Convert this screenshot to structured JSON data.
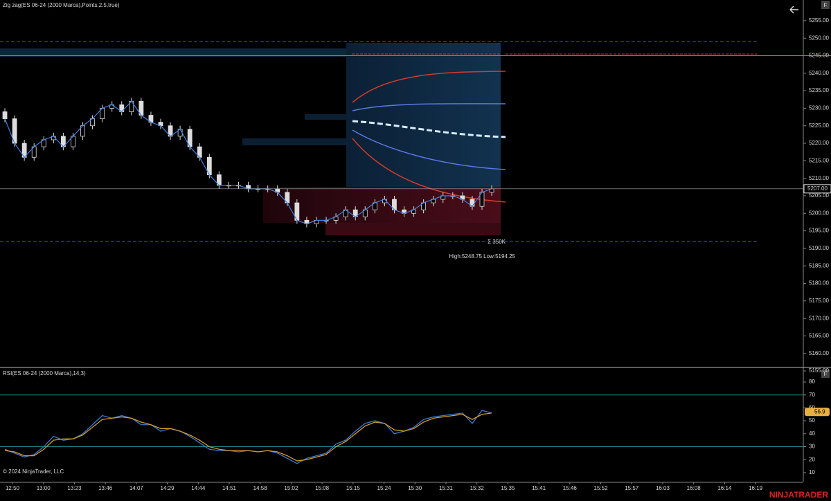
{
  "chart_data": [
    {
      "type": "candlestick",
      "title": "Zig zag(ES 06-24 (2000 Marca),Points,2.5,true)",
      "xlim": [
        -0.5,
        82
      ],
      "ylim": [
        5156.2,
        5260.9
      ],
      "yticks": [
        {
          "value": 5155,
          "label": "5155.00"
        },
        {
          "value": 5160,
          "label": "5160.00"
        },
        {
          "value": 5165,
          "label": "5165.00"
        },
        {
          "value": 5170,
          "label": "5170.00"
        },
        {
          "value": 5175,
          "label": "5175.00"
        },
        {
          "value": 5180,
          "label": "5180.00"
        },
        {
          "value": 5185,
          "label": "5185.00"
        },
        {
          "value": 5190,
          "label": "5190.00"
        },
        {
          "value": 5195,
          "label": "5195.00"
        },
        {
          "value": 5200,
          "label": "5200.00"
        },
        {
          "value": 5205,
          "label": "5205.00"
        },
        {
          "value": 5210,
          "label": "5210.00"
        },
        {
          "value": 5215,
          "label": "5215.00"
        },
        {
          "value": 5220,
          "label": "5220.00"
        },
        {
          "value": 5225,
          "label": "5225.00"
        },
        {
          "value": 5230,
          "label": "5230.00"
        },
        {
          "value": 5235,
          "label": "5235.00"
        },
        {
          "value": 5240,
          "label": "5240.00"
        },
        {
          "value": 5245,
          "label": "5245.00"
        },
        {
          "value": 5250,
          "label": "5250.00"
        },
        {
          "value": 5255,
          "label": "5255.00"
        }
      ],
      "open": [
        5229,
        5227,
        5220,
        5216,
        5219,
        5221,
        5222,
        5219,
        5222,
        5225,
        5227,
        5230,
        5231,
        5229,
        5232,
        5228,
        5226,
        5225,
        5222,
        5224,
        5219,
        5216,
        5211,
        5208,
        5208,
        5208,
        5207,
        5207,
        5207,
        5206,
        5203,
        5198,
        5197,
        5198,
        5198,
        5199,
        5201,
        5199,
        5201,
        5203,
        5204,
        5201,
        5200,
        5201,
        5203,
        5204,
        5205,
        5205,
        5204,
        5202,
        5206
      ],
      "high": [
        5230,
        5228,
        5221,
        5220,
        5222,
        5223,
        5223,
        5223,
        5226,
        5228,
        5231,
        5232,
        5232,
        5233,
        5233,
        5229,
        5227,
        5226,
        5225,
        5225,
        5220,
        5217,
        5212,
        5209,
        5209,
        5209,
        5208,
        5208,
        5208,
        5207,
        5204,
        5199,
        5199,
        5199,
        5200,
        5202,
        5202,
        5202,
        5204,
        5205,
        5205,
        5202,
        5202,
        5204,
        5205,
        5206,
        5206,
        5206,
        5205,
        5207,
        5208
      ],
      "low": [
        5226,
        5219,
        5215,
        5215,
        5218,
        5220,
        5218,
        5218,
        5221,
        5224,
        5226,
        5229,
        5228,
        5228,
        5227,
        5225,
        5224,
        5221,
        5221,
        5218,
        5215,
        5210,
        5207,
        5207,
        5207,
        5206,
        5206,
        5206,
        5205,
        5202,
        5197,
        5196,
        5196,
        5197,
        5197,
        5198,
        5198,
        5198,
        5200,
        5202,
        5200,
        5199,
        5199,
        5200,
        5202,
        5203,
        5204,
        5203,
        5201,
        5201,
        5205
      ],
      "close": [
        5227,
        5220,
        5216,
        5219,
        5221,
        5222,
        5219,
        5222,
        5225,
        5227,
        5230,
        5231,
        5229,
        5232,
        5228,
        5226,
        5225,
        5222,
        5224,
        5219,
        5216,
        5211,
        5208,
        5208,
        5208,
        5207,
        5207,
        5207,
        5206,
        5203,
        5198,
        5197,
        5198,
        5198,
        5199,
        5201,
        5199,
        5201,
        5203,
        5204,
        5201,
        5200,
        5201,
        5203,
        5204,
        5205,
        5205,
        5204,
        5202,
        5206,
        5207
      ],
      "levels": [
        5249,
        5245,
        5192
      ],
      "last_price": {
        "value": 5207,
        "label": "5207.00"
      },
      "annotations": [
        "Σ 350K",
        "High:5248.75 Low:5194.25"
      ]
    },
    {
      "type": "line",
      "title": "RSI(ES 06-24 (2000 Marca),14,3)",
      "xlim": [
        -0.5,
        82
      ],
      "ylim": [
        3,
        90.7
      ],
      "yticks": [
        10,
        20,
        30,
        40,
        50,
        60,
        70,
        80
      ],
      "levels": [
        70,
        30
      ],
      "last_value": 56.9,
      "series": [
        {
          "color": "#3a7bd5",
          "values": [
            28,
            25,
            22,
            24,
            30,
            38,
            35,
            36,
            40,
            47,
            54,
            52,
            54,
            52,
            47,
            47,
            42,
            44,
            42,
            38,
            33,
            28,
            27,
            27,
            26,
            27,
            26,
            27,
            25,
            21,
            17,
            21,
            23,
            25,
            32,
            35,
            42,
            48,
            50,
            48,
            40,
            42,
            45,
            51,
            53,
            54,
            55,
            56,
            48,
            58,
            56
          ]
        },
        {
          "color": "#d89a2a",
          "values": [
            27,
            26,
            23,
            23,
            28,
            35,
            36,
            36,
            39,
            45,
            51,
            52,
            53,
            52,
            49,
            47,
            44,
            44,
            42,
            39,
            35,
            30,
            28,
            27,
            27,
            27,
            26,
            27,
            26,
            23,
            19,
            20,
            22,
            24,
            30,
            34,
            40,
            46,
            49,
            48,
            43,
            42,
            44,
            49,
            52,
            53,
            54,
            55,
            51,
            55,
            56
          ]
        }
      ],
      "xticks": [
        {
          "value": 0.78,
          "label": "12:50"
        },
        {
          "value": 3.96,
          "label": "13:00"
        },
        {
          "value": 7.14,
          "label": "13:23"
        },
        {
          "value": 10.32,
          "label": "13:46"
        },
        {
          "value": 13.5,
          "label": "14:07"
        },
        {
          "value": 16.68,
          "label": "14:29"
        },
        {
          "value": 19.86,
          "label": "14:44"
        },
        {
          "value": 23.04,
          "label": "14:51"
        },
        {
          "value": 26.22,
          "label": "14:58"
        },
        {
          "value": 29.4,
          "label": "15:02"
        },
        {
          "value": 32.58,
          "label": "15:08"
        },
        {
          "value": 35.76,
          "label": "15:15"
        },
        {
          "value": 38.94,
          "label": "15:24"
        },
        {
          "value": 42.12,
          "label": "15:30"
        },
        {
          "value": 45.3,
          "label": "15:31"
        },
        {
          "value": 48.48,
          "label": "15:32"
        },
        {
          "value": 51.66,
          "label": "15:35"
        },
        {
          "value": 54.84,
          "label": "15:41"
        },
        {
          "value": 58.02,
          "label": "15:46"
        },
        {
          "value": 61.2,
          "label": "15:52"
        },
        {
          "value": 64.38,
          "label": "15:57"
        },
        {
          "value": 67.56,
          "label": "16:03"
        },
        {
          "value": 70.74,
          "label": "16:08"
        },
        {
          "value": 73.92,
          "label": "16:14"
        },
        {
          "value": 77.1,
          "label": "16:19"
        }
      ]
    }
  ],
  "copyright": "© 2024 NinjaTrader, LLC",
  "watermark": "NINJATRADER",
  "button": "F"
}
